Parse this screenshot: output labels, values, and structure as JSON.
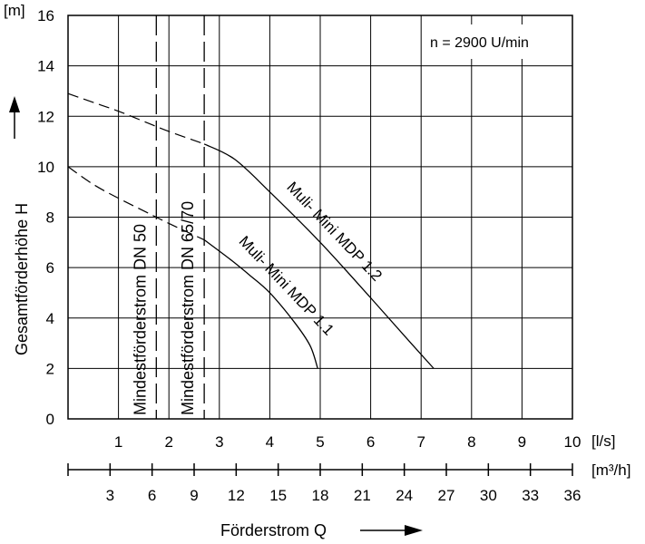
{
  "chart_data": {
    "type": "line",
    "annotation": "n = 2900 U/min",
    "y_unit": "[m]",
    "ylabel": "Gesamtförderhöhe  H",
    "xlabel": "Förderstrom  Q",
    "x_unit_primary": "[l/s]",
    "x_unit_secondary": "[m³/h]",
    "xlim": [
      0,
      10
    ],
    "ylim": [
      0,
      16
    ],
    "x_ticks": [
      "1",
      "2",
      "3",
      "4",
      "5",
      "6",
      "7",
      "8",
      "9",
      "10"
    ],
    "y_ticks": [
      "0",
      "2",
      "4",
      "6",
      "8",
      "10",
      "12",
      "14",
      "16"
    ],
    "x2_ticks": [
      "3",
      "6",
      "9",
      "12",
      "15",
      "18",
      "21",
      "24",
      "27",
      "30",
      "33",
      "36"
    ],
    "grid": true,
    "min_flow_lines": [
      {
        "label": "Mindestförderstrom DN 50",
        "x": 1.75
      },
      {
        "label": "Mindestförderstrom DN 65/70",
        "x": 2.7
      }
    ],
    "series": [
      {
        "name": "Muli- Mini MDP 1.1",
        "dashed_points": [
          [
            0,
            10.0
          ],
          [
            0.5,
            9.3
          ],
          [
            1,
            8.75
          ],
          [
            1.5,
            8.25
          ],
          [
            2,
            7.75
          ],
          [
            2.7,
            7.1
          ]
        ],
        "solid_points": [
          [
            2.7,
            7.1
          ],
          [
            3.2,
            6.35
          ],
          [
            3.6,
            5.7
          ],
          [
            4,
            5.0
          ],
          [
            4.5,
            3.8
          ],
          [
            4.8,
            2.9
          ],
          [
            4.95,
            2.0
          ]
        ]
      },
      {
        "name": "Muli- Mini MDP 1.2",
        "dashed_points": [
          [
            0,
            12.9
          ],
          [
            0.5,
            12.55
          ],
          [
            1,
            12.2
          ],
          [
            1.5,
            11.8
          ],
          [
            2,
            11.4
          ],
          [
            2.7,
            10.9
          ]
        ],
        "solid_points": [
          [
            2.7,
            10.9
          ],
          [
            3.3,
            10.3
          ],
          [
            4,
            9.0
          ],
          [
            5,
            7.0
          ],
          [
            6,
            4.8
          ],
          [
            6.8,
            3.0
          ],
          [
            7.25,
            2.0
          ]
        ]
      }
    ]
  }
}
